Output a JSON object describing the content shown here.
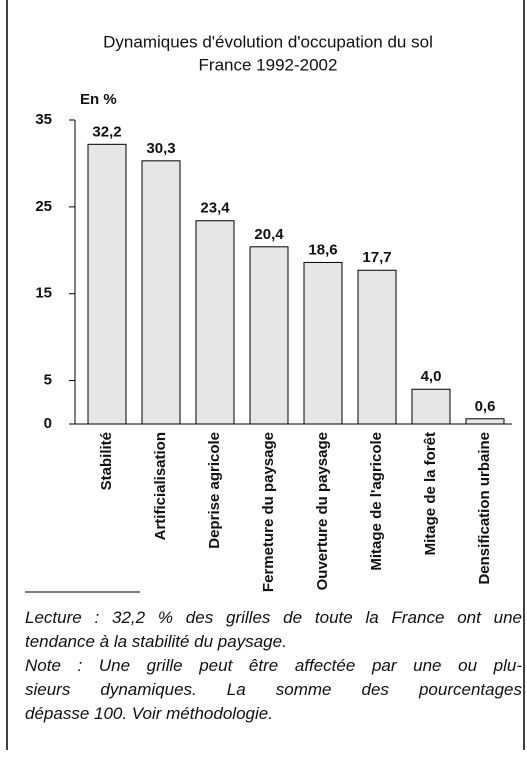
{
  "chart_data": {
    "type": "bar",
    "title": "Dynamiques d'évolution d'occupation du sol",
    "subtitle": "France 1992-2002",
    "y_label": "En %",
    "categories": [
      "Stabilité",
      "Artificialisation",
      "Deprise agricole",
      "Fermeture du paysage",
      "Ouverture du paysage",
      "Mitage de l'agricole",
      "Mitage de la forêt",
      "Densification urbaine"
    ],
    "values": [
      32.2,
      30.3,
      23.4,
      20.4,
      18.6,
      17.7,
      4.0,
      0.6
    ],
    "value_labels": [
      "32,2",
      "30,3",
      "23,4",
      "20,4",
      "18,6",
      "17,7",
      "4,0",
      "0,6"
    ],
    "color": "#e6e6e6",
    "ylim": [
      0,
      35
    ],
    "yticks": [
      0,
      5,
      15,
      25,
      35
    ]
  },
  "notes": [
    "Lecture : 32,2 % des grilles de toute la France ont une",
    "tendance à la stabilité du paysage.",
    "Note : Une grille peut être affectée par une ou plu-",
    "sieurs dynamiques. La somme des pourcentages",
    "dépasse 100. Voir méthodologie."
  ]
}
